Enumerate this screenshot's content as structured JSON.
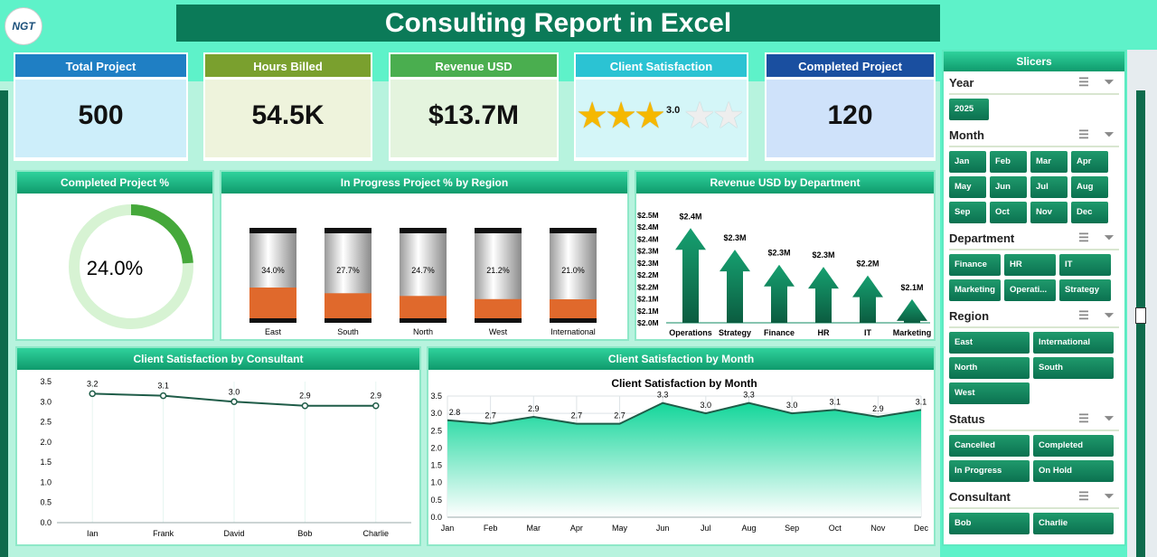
{
  "title": "Consulting Report in Excel",
  "logo": "NGT",
  "kpis": [
    {
      "label": "Total Project",
      "value": "500",
      "header_color": "#1f7fc4",
      "body_color": "#cdeefa"
    },
    {
      "label": "Hours Billed",
      "value": "54.5K",
      "header_color": "#7aa02e",
      "body_color": "#eef3dc"
    },
    {
      "label": "Revenue USD",
      "value": "$13.7M",
      "header_color": "#4aae4f",
      "body_color": "#e4f4de"
    },
    {
      "label": "Client Satisfaction",
      "value": "3.0",
      "stars": 3,
      "max_stars": 5,
      "header_color": "#2bc3d3",
      "body_color": "#d4f6f8"
    },
    {
      "label": "Completed Project",
      "value": "120",
      "header_color": "#1a4fa0",
      "body_color": "#cfe2fa"
    }
  ],
  "panels": {
    "completed_pct": "Completed Project %",
    "in_progress": "In Progress Project % by Region",
    "revenue": "Revenue USD by Department",
    "consultant": "Client Satisfaction by Consultant",
    "month": "Client Satisfaction by Month"
  },
  "chart_data": [
    {
      "type": "donut",
      "value": 24.0,
      "label": "24.0%"
    },
    {
      "type": "bar",
      "categories": [
        "East",
        "South",
        "North",
        "West",
        "International"
      ],
      "values": [
        34.0,
        27.7,
        24.7,
        21.2,
        21.0
      ],
      "labels": [
        "34.0%",
        "27.7%",
        "24.7%",
        "21.2%",
        "21.0%"
      ],
      "ylim": [
        0,
        100
      ]
    },
    {
      "type": "bar",
      "categories": [
        "Operations",
        "Strategy",
        "Finance",
        "HR",
        "IT",
        "Marketing"
      ],
      "values": [
        2.44,
        2.34,
        2.27,
        2.26,
        2.22,
        2.11
      ],
      "labels": [
        "$2.4M",
        "$2.3M",
        "$2.3M",
        "$2.3M",
        "$2.2M",
        "$2.1M"
      ],
      "yticks": [
        "$2.0M",
        "$2.1M",
        "$2.1M",
        "$2.2M",
        "$2.2M",
        "$2.3M",
        "$2.3M",
        "$2.4M",
        "$2.4M",
        "$2.5M"
      ],
      "ylim": [
        2.0,
        2.5
      ]
    },
    {
      "type": "line",
      "categories": [
        "Ian",
        "Frank",
        "David",
        "Bob",
        "Charlie"
      ],
      "values": [
        3.2,
        3.15,
        3.0,
        2.9,
        2.9
      ],
      "labels": [
        "3.2",
        "3.1",
        "3.0",
        "2.9",
        "2.9"
      ],
      "yticks": [
        "0.0",
        "0.5",
        "1.0",
        "1.5",
        "2.0",
        "2.5",
        "3.0",
        "3.5"
      ],
      "ylim": [
        0,
        3.5
      ]
    },
    {
      "type": "area",
      "title": "Client Satisfaction by Month",
      "categories": [
        "Jan",
        "Feb",
        "Mar",
        "Apr",
        "May",
        "Jun",
        "Jul",
        "Aug",
        "Sep",
        "Oct",
        "Nov",
        "Dec"
      ],
      "values": [
        2.8,
        2.7,
        2.9,
        2.7,
        2.7,
        3.3,
        3.0,
        3.3,
        3.0,
        3.1,
        2.9,
        3.1
      ],
      "labels": [
        "2.8",
        "2.7",
        "2.9",
        "2.7",
        "2.7",
        "3.3",
        "3.0",
        "3.3",
        "3.0",
        "3.1",
        "2.9",
        "3.1"
      ],
      "yticks": [
        "0.0",
        "0.5",
        "1.0",
        "1.5",
        "2.0",
        "2.5",
        "3.0",
        "3.5"
      ],
      "ylim": [
        0,
        3.5
      ]
    }
  ],
  "slicers": {
    "title": "Slicers",
    "groups": [
      {
        "name": "Year",
        "cols": 4,
        "items": [
          "2025"
        ]
      },
      {
        "name": "Month",
        "cols": 4,
        "items": [
          "Jan",
          "Feb",
          "Mar",
          "Apr",
          "May",
          "Jun",
          "Jul",
          "Aug",
          "Sep",
          "Oct",
          "Nov",
          "Dec"
        ]
      },
      {
        "name": "Department",
        "cols": 3,
        "items": [
          "Finance",
          "HR",
          "IT",
          "Marketing",
          "Operati...",
          "Strategy"
        ]
      },
      {
        "name": "Region",
        "cols": 2,
        "items": [
          "East",
          "International",
          "North",
          "South",
          "West"
        ]
      },
      {
        "name": "Status",
        "cols": 2,
        "items": [
          "Cancelled",
          "Completed",
          "In Progress",
          "On Hold"
        ]
      },
      {
        "name": "Consultant",
        "cols": 2,
        "items": [
          "Bob",
          "Charlie"
        ]
      }
    ]
  }
}
